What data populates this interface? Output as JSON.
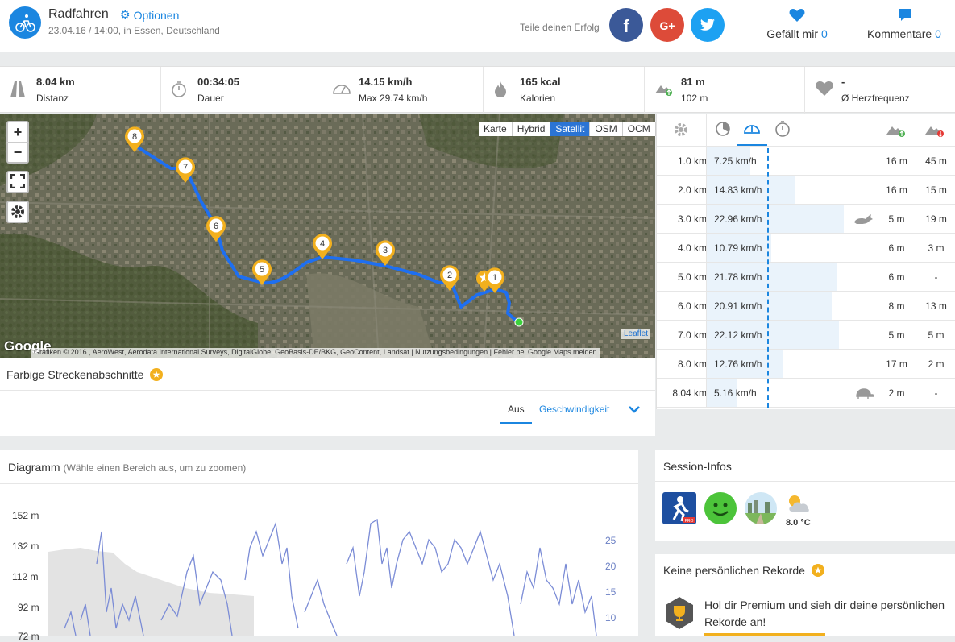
{
  "header": {
    "title": "Radfahren",
    "options_label": "Optionen",
    "subtitle": "23.04.16 / 14:00, in Essen, Deutschland",
    "share_label": "Teile deinen Erfolg",
    "like_label": "Gefällt mir",
    "like_count": "0",
    "comment_label": "Kommentare",
    "comment_count": "0",
    "colors": {
      "accent": "#1b86e0",
      "facebook": "#3b5998",
      "googleplus": "#dd4b39",
      "twitter": "#1da1f2"
    }
  },
  "stats": [
    {
      "icon": "road-icon",
      "value": "8.04 km",
      "label": "Distanz"
    },
    {
      "icon": "stopwatch-icon",
      "value": "00:34:05",
      "label": "Dauer"
    },
    {
      "icon": "speedometer-icon",
      "value": "14.15 km/h",
      "label": "Max 29.74 km/h"
    },
    {
      "icon": "flame-icon",
      "value": "165 kcal",
      "label": "Kalorien"
    },
    {
      "icon": "elevation-up-icon",
      "value": "81 m",
      "label": "102 m"
    },
    {
      "icon": "heart-icon",
      "value": "-",
      "label": "Ø Herzfrequenz"
    }
  ],
  "map": {
    "types": [
      "Karte",
      "Hybrid",
      "Satellit",
      "OSM",
      "OCM"
    ],
    "active_type": "Satellit",
    "zoom_in": "+",
    "zoom_out": "−",
    "markers": [
      "1",
      "2",
      "3",
      "4",
      "5",
      "6",
      "7",
      "8"
    ],
    "google_label": "Google",
    "attribution": "Grafiken © 2016 , AeroWest, Aerodata International Surveys, DigitalGlobe, GeoBasis-DE/BKG, GeoContent, Landsat",
    "terms": "Nutzungsbedingungen",
    "report": "Fehler bei Google Maps melden",
    "leaflet": "Leaflet"
  },
  "segments": {
    "title": "Farbige Streckenabschnitte",
    "off_label": "Aus",
    "speed_label": "Geschwindigkeit"
  },
  "splits": {
    "avg_speed_fraction": 0.44,
    "rows": [
      {
        "km": "1.0 km",
        "speed": "7.25 km/h",
        "speed_value": 7.25,
        "up": "16 m",
        "down": "45 m",
        "badge": ""
      },
      {
        "km": "2.0 km",
        "speed": "14.83 km/h",
        "speed_value": 14.83,
        "up": "16 m",
        "down": "15 m",
        "badge": ""
      },
      {
        "km": "3.0 km",
        "speed": "22.96 km/h",
        "speed_value": 22.96,
        "up": "5 m",
        "down": "19 m",
        "badge": "rabbit-icon"
      },
      {
        "km": "4.0 km",
        "speed": "10.79 km/h",
        "speed_value": 10.79,
        "up": "6 m",
        "down": "3 m",
        "badge": ""
      },
      {
        "km": "5.0 km",
        "speed": "21.78 km/h",
        "speed_value": 21.78,
        "up": "6 m",
        "down": "-",
        "badge": ""
      },
      {
        "km": "6.0 km",
        "speed": "20.91 km/h",
        "speed_value": 20.91,
        "up": "8 m",
        "down": "13 m",
        "badge": ""
      },
      {
        "km": "7.0 km",
        "speed": "22.12 km/h",
        "speed_value": 22.12,
        "up": "5 m",
        "down": "5 m",
        "badge": ""
      },
      {
        "km": "8.0 km",
        "speed": "12.76 km/h",
        "speed_value": 12.76,
        "up": "17 m",
        "down": "2 m",
        "badge": ""
      },
      {
        "km": "8.04 km",
        "speed": "5.16 km/h",
        "speed_value": 5.16,
        "up": "2 m",
        "down": "-",
        "badge": "turtle-icon"
      }
    ]
  },
  "diagram": {
    "title": "Diagramm",
    "hint": "(Wähle einen Bereich aus, um zu zoomen)",
    "y_left": [
      "152 m",
      "132 m",
      "112 m",
      "92 m",
      "72 m"
    ],
    "y_right": [
      "25",
      "20",
      "15",
      "10"
    ]
  },
  "session": {
    "title": "Session-Infos",
    "temperature": "8.0 °C"
  },
  "records": {
    "title": "Keine persönlichen Rekorde",
    "text": "Hol dir Premium und sieh dir deine persönlichen Rekorde an!"
  }
}
